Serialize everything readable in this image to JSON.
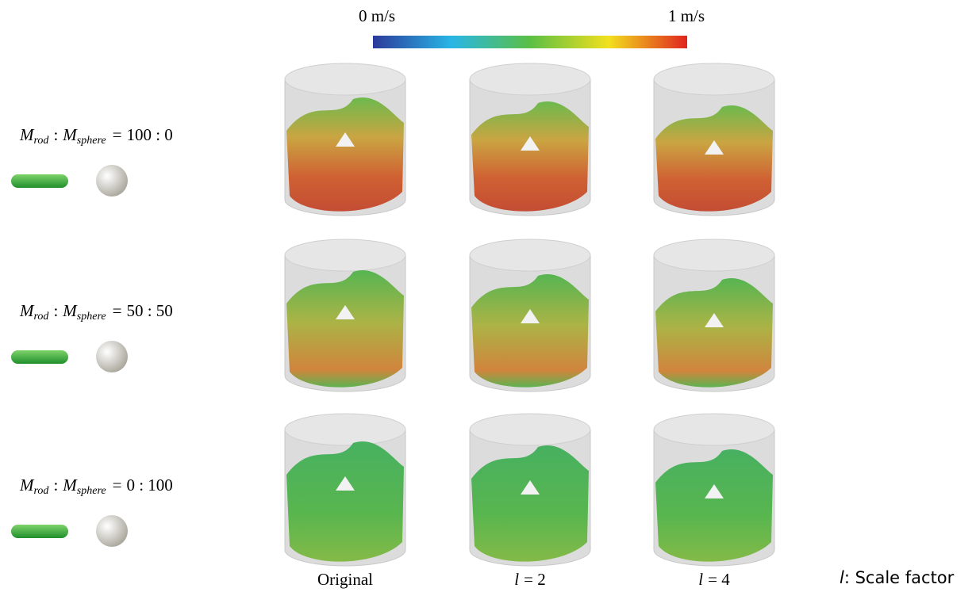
{
  "colorbar": {
    "min_label": "0 m/s",
    "max_label": "1 m/s"
  },
  "mass_symbol": "M",
  "rod_subscript": "rod",
  "sphere_subscript": "sphere",
  "ratio_separator": ":",
  "equals": "=",
  "rows": [
    {
      "ratio": "100 : 0"
    },
    {
      "ratio": "50 : 50"
    },
    {
      "ratio": "0 : 100"
    }
  ],
  "columns": [
    {
      "label": "Original"
    },
    {
      "symbol": "l",
      "label": "= 2"
    },
    {
      "symbol": "l",
      "label": "= 4"
    }
  ],
  "legend": {
    "symbol": "l",
    "label": ": Scale factor"
  }
}
